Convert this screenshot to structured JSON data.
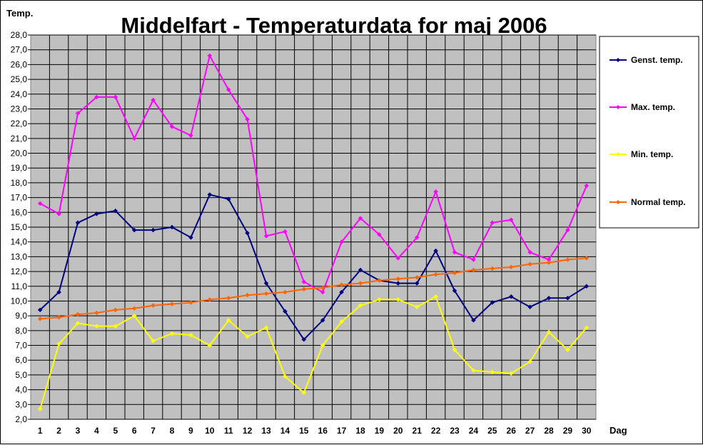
{
  "chart_data": {
    "type": "line",
    "title": "Middelfart - Temperaturdata for maj 2006",
    "ylabel": "Temp.",
    "xlabel": "Dag",
    "ylim": [
      2.0,
      28.0
    ],
    "ytick_step": 1.0,
    "x": [
      1,
      2,
      3,
      4,
      5,
      6,
      7,
      8,
      9,
      10,
      11,
      12,
      13,
      14,
      15,
      16,
      17,
      18,
      19,
      20,
      21,
      22,
      23,
      24,
      25,
      26,
      27,
      28,
      29,
      30
    ],
    "grid": true,
    "legend_position": "right",
    "series": [
      {
        "name": "Genst. temp.",
        "color": "#000080",
        "values": [
          9.4,
          10.6,
          15.3,
          15.9,
          16.1,
          14.8,
          14.8,
          15.0,
          14.3,
          17.2,
          16.9,
          14.6,
          11.2,
          9.3,
          7.4,
          8.7,
          10.6,
          12.1,
          11.4,
          11.2,
          11.2,
          13.4,
          10.7,
          8.7,
          9.9,
          10.3,
          9.6,
          10.2,
          10.2,
          11.0
        ]
      },
      {
        "name": "Max. temp.",
        "color": "#ff00ff",
        "values": [
          16.6,
          15.9,
          22.7,
          23.8,
          23.8,
          21.0,
          23.6,
          21.8,
          21.2,
          26.6,
          24.3,
          22.3,
          14.4,
          14.7,
          11.3,
          10.6,
          14.0,
          15.6,
          14.5,
          12.9,
          14.3,
          17.4,
          13.3,
          12.8,
          15.3,
          15.5,
          13.3,
          12.8,
          14.8,
          17.8
        ]
      },
      {
        "name": "Min. temp.",
        "color": "#ffff00",
        "values": [
          2.7,
          7.1,
          8.5,
          8.3,
          8.3,
          9.0,
          7.3,
          7.8,
          7.7,
          7.0,
          8.7,
          7.6,
          8.2,
          4.9,
          3.8,
          7.0,
          8.6,
          9.7,
          10.1,
          10.1,
          9.6,
          10.3,
          6.7,
          5.3,
          5.2,
          5.1,
          5.9,
          7.9,
          6.7,
          8.2
        ]
      },
      {
        "name": "Normal temp.",
        "color": "#ff6600",
        "values": [
          8.8,
          8.9,
          9.1,
          9.2,
          9.4,
          9.5,
          9.7,
          9.8,
          9.9,
          10.1,
          10.2,
          10.4,
          10.5,
          10.6,
          10.8,
          10.9,
          11.1,
          11.2,
          11.4,
          11.5,
          11.6,
          11.8,
          11.9,
          12.1,
          12.2,
          12.3,
          12.5,
          12.6,
          12.8,
          12.9
        ]
      }
    ]
  }
}
